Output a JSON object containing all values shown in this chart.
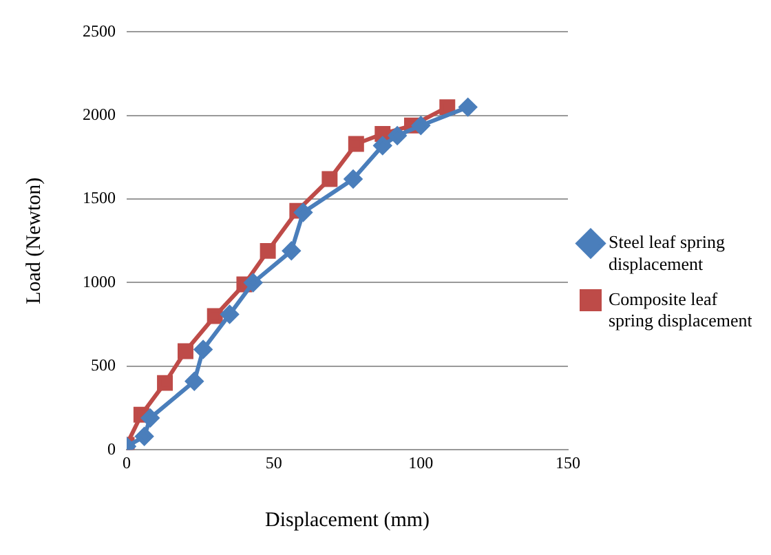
{
  "chart_data": {
    "type": "line",
    "xlabel": "Displacement (mm)",
    "ylabel": "Load (Newton)",
    "xlim": [
      0,
      150
    ],
    "xticks": [
      0,
      50,
      100,
      150
    ],
    "ylim": [
      0,
      2500
    ],
    "yticks": [
      0,
      500,
      1000,
      1500,
      2000,
      2500
    ],
    "grid": "y",
    "legend": "right",
    "line_style": "solid",
    "series": [
      {
        "name": "Steel leaf spring displacement",
        "color": "#4a7ebb",
        "marker": "diamond",
        "x": [
          0,
          6,
          8,
          23,
          26,
          35,
          43,
          56,
          60,
          77,
          87,
          92,
          100,
          116
        ],
        "values": [
          20,
          80,
          190,
          410,
          600,
          810,
          1000,
          1190,
          1420,
          1620,
          1820,
          1880,
          1940,
          2050
        ]
      },
      {
        "name": "Composite leaf spring displacement",
        "color": "#be4b48",
        "marker": "square",
        "x": [
          0,
          5,
          13,
          20,
          30,
          40,
          48,
          58,
          69,
          78,
          87,
          97,
          109
        ],
        "values": [
          30,
          210,
          400,
          590,
          800,
          990,
          1190,
          1430,
          1620,
          1830,
          1890,
          1940,
          2050
        ]
      }
    ]
  }
}
